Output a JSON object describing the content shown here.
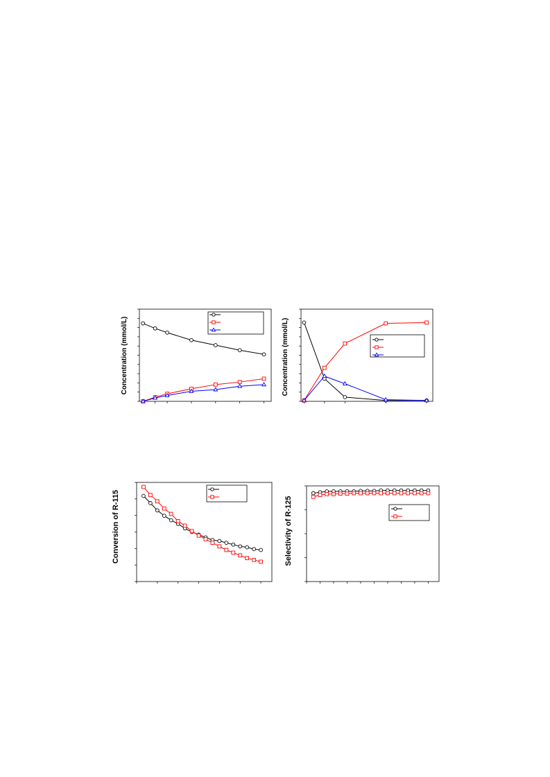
{
  "chart_data": [
    {
      "type": "line",
      "ylabel": "Concentration (mmol/L)",
      "x": [
        0,
        1,
        2,
        4,
        6,
        8,
        10
      ],
      "ylim": [
        0,
        1.1
      ],
      "xlim": [
        -0.3,
        10.6
      ],
      "legend": "top-right",
      "series": [
        {
          "color": "#000000",
          "marker": "circle",
          "values": [
            0.93,
            0.87,
            0.82,
            0.73,
            0.67,
            0.61,
            0.56
          ]
        },
        {
          "color": "#ff0000",
          "marker": "square",
          "values": [
            0.0,
            0.05,
            0.09,
            0.15,
            0.2,
            0.23,
            0.27
          ]
        },
        {
          "color": "#0000ff",
          "marker": "triangle",
          "values": [
            0.0,
            0.04,
            0.07,
            0.12,
            0.14,
            0.18,
            0.2
          ]
        }
      ]
    },
    {
      "type": "line",
      "ylabel": "Concentration (mmol/L)",
      "x": [
        0,
        1,
        2,
        4,
        6
      ],
      "ylim": [
        0,
        1.1
      ],
      "xlim": [
        -0.15,
        6.3
      ],
      "legend": "center-right",
      "series": [
        {
          "color": "#000000",
          "marker": "circle",
          "values": [
            0.94,
            0.27,
            0.05,
            0.01,
            0.01
          ]
        },
        {
          "color": "#ff0000",
          "marker": "square",
          "values": [
            0.01,
            0.4,
            0.69,
            0.93,
            0.94
          ]
        },
        {
          "color": "#0000ff",
          "marker": "triangle",
          "values": [
            0.01,
            0.3,
            0.21,
            0.02,
            0.01
          ]
        }
      ]
    },
    {
      "type": "line",
      "ylabel": "Conversion of R-115",
      "x": [
        1,
        2,
        3,
        4,
        5,
        6,
        7,
        8,
        9,
        10,
        11,
        12,
        13,
        14,
        15,
        16,
        17,
        18
      ],
      "ylim": [
        0,
        1.1
      ],
      "xlim": [
        0,
        19.6
      ],
      "legend": "top-right",
      "series": [
        {
          "color": "#000000",
          "marker": "circle",
          "values": [
            0.95,
            0.87,
            0.79,
            0.73,
            0.68,
            0.64,
            0.59,
            0.55,
            0.52,
            0.49,
            0.46,
            0.45,
            0.43,
            0.41,
            0.39,
            0.38,
            0.36,
            0.35
          ]
        },
        {
          "color": "#ff0000",
          "marker": "square",
          "values": [
            1.05,
            0.96,
            0.89,
            0.81,
            0.75,
            0.67,
            0.62,
            0.56,
            0.51,
            0.47,
            0.43,
            0.39,
            0.35,
            0.32,
            0.29,
            0.26,
            0.24,
            0.22
          ]
        }
      ]
    },
    {
      "type": "line",
      "ylabel": "Selectivity of R-125",
      "x": [
        1,
        2,
        3,
        4,
        5,
        6,
        7,
        8,
        9,
        10,
        11,
        12,
        13,
        14,
        15,
        16,
        17,
        18
      ],
      "ylim": [
        0,
        1.05
      ],
      "xlim": [
        0,
        19.6
      ],
      "legend": "center-right",
      "series": [
        {
          "color": "#000000",
          "marker": "circle",
          "values": [
            0.97,
            0.98,
            0.99,
            0.99,
            0.99,
            0.99,
            0.99,
            0.995,
            0.995,
            0.995,
            1.0,
            1.0,
            1.0,
            1.0,
            1.0,
            1.0,
            1.0,
            1.0
          ]
        },
        {
          "color": "#ff0000",
          "marker": "square",
          "values": [
            0.93,
            0.95,
            0.96,
            0.96,
            0.965,
            0.965,
            0.97,
            0.97,
            0.97,
            0.97,
            0.97,
            0.97,
            0.97,
            0.97,
            0.97,
            0.97,
            0.97,
            0.97
          ]
        }
      ]
    }
  ]
}
